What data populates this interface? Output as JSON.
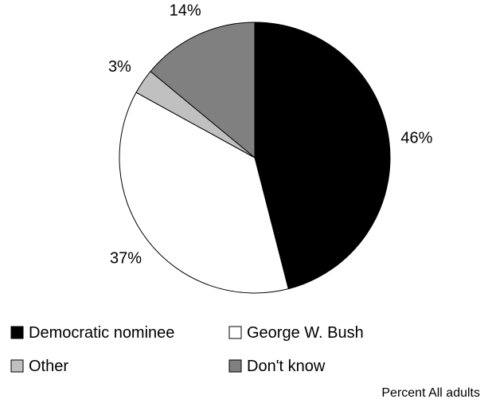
{
  "chart_data": {
    "type": "pie",
    "start_angle_deg": 0,
    "direction": "clockwise",
    "slices": [
      {
        "label": "Democratic nominee",
        "value": 46,
        "value_label": "46%",
        "color": "#000000"
      },
      {
        "label": "George W. Bush",
        "value": 37,
        "value_label": "37%",
        "color": "#ffffff"
      },
      {
        "label": "Other",
        "value": 3,
        "value_label": "3%",
        "color": "#c0c0c0"
      },
      {
        "label": "Don't know",
        "value": 14,
        "value_label": "14%",
        "color": "#808080"
      }
    ],
    "legend_placement": "bottom",
    "footnote": "Percent All adults"
  }
}
